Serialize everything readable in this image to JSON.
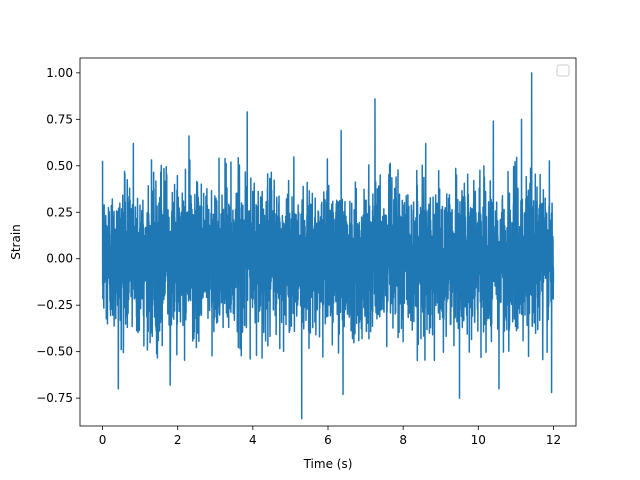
{
  "chart_data": {
    "type": "line",
    "title": "",
    "xlabel": "Time (s)",
    "ylabel": "Strain",
    "xlim": [
      -0.6,
      12.6
    ],
    "ylim": [
      -0.9,
      1.08
    ],
    "xticks": [
      0,
      2,
      4,
      6,
      8,
      10,
      12
    ],
    "xtick_labels": [
      "0",
      "2",
      "4",
      "6",
      "8",
      "10",
      "12"
    ],
    "yticks": [
      -0.75,
      -0.5,
      -0.25,
      0.0,
      0.25,
      0.5,
      0.75,
      1.0
    ],
    "ytick_labels": [
      "−0.75",
      "−0.50",
      "−0.25",
      "0.00",
      "0.25",
      "0.50",
      "0.75",
      "1.00"
    ],
    "grid": false,
    "legend": {
      "position": "top-right",
      "entries": []
    },
    "series": [
      {
        "color": "#1f77b4",
        "x_range": [
          0,
          12
        ],
        "typical_envelope": [
          -0.55,
          0.55
        ],
        "peaks": [
          {
            "x": 11.42,
            "y": 1.0
          },
          {
            "x": 7.25,
            "y": 0.86
          },
          {
            "x": 3.85,
            "y": 0.79
          },
          {
            "x": 11.15,
            "y": 0.75
          },
          {
            "x": 10.4,
            "y": 0.74
          },
          {
            "x": 6.35,
            "y": 0.69
          },
          {
            "x": 2.3,
            "y": 0.66
          },
          {
            "x": 0.82,
            "y": 0.62
          },
          {
            "x": 8.6,
            "y": 0.62
          }
        ],
        "troughs": [
          {
            "x": 5.3,
            "y": -0.86
          },
          {
            "x": 11.95,
            "y": -0.72
          },
          {
            "x": 9.5,
            "y": -0.75
          },
          {
            "x": 0.42,
            "y": -0.7
          },
          {
            "x": 6.4,
            "y": -0.73
          },
          {
            "x": 1.8,
            "y": -0.68
          },
          {
            "x": 10.55,
            "y": -0.7
          }
        ]
      }
    ]
  }
}
